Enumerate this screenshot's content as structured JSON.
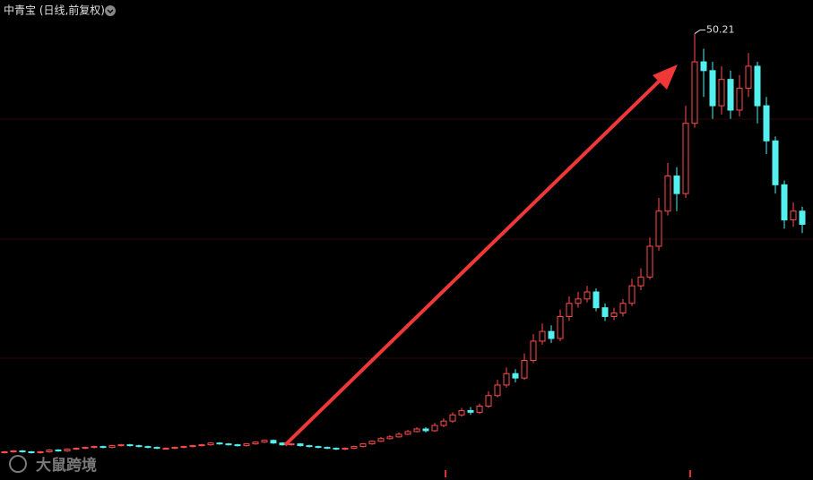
{
  "chart_data": {
    "type": "candlestick",
    "title": "中青宝 (日线,前复权)",
    "watermark": "大鼠跨境",
    "annotation": "50.21",
    "up_color": "#ff4b4b",
    "down_color": "#54f0f0",
    "ylim": [
      0,
      52
    ],
    "open": [
      2.5,
      2.6,
      2.7,
      2.6,
      2.5,
      2.6,
      2.8,
      2.7,
      2.9,
      3.0,
      3.1,
      3.2,
      3.1,
      3.3,
      3.4,
      3.3,
      3.2,
      3.1,
      3.0,
      3.0,
      3.1,
      3.2,
      3.3,
      3.4,
      3.6,
      3.5,
      3.4,
      3.3,
      3.5,
      3.7,
      3.9,
      3.6,
      3.4,
      3.5,
      3.3,
      3.2,
      3.1,
      3.0,
      2.9,
      3.0,
      3.2,
      3.5,
      3.8,
      4.1,
      4.3,
      4.6,
      4.9,
      5.2,
      5.0,
      5.6,
      6.1,
      6.8,
      7.3,
      7.1,
      7.8,
      9.0,
      10.2,
      11.5,
      11.0,
      13.0,
      15.2,
      16.3,
      15.5,
      18.0,
      19.5,
      20.0,
      20.8,
      19.0,
      18.0,
      18.4,
      19.5,
      21.5,
      22.5,
      26.0,
      30.0,
      34.0,
      32.0,
      40.0,
      47.0,
      46.0,
      42.0,
      45.0,
      41.5,
      44.0,
      46.5,
      42.0,
      38.0,
      33.0,
      29.0,
      30.0
    ],
    "close": [
      2.6,
      2.7,
      2.6,
      2.5,
      2.6,
      2.8,
      2.7,
      2.9,
      3.0,
      3.1,
      3.2,
      3.1,
      3.3,
      3.4,
      3.3,
      3.2,
      3.1,
      3.0,
      3.0,
      3.1,
      3.2,
      3.3,
      3.4,
      3.6,
      3.5,
      3.4,
      3.3,
      3.5,
      3.7,
      3.9,
      3.6,
      3.4,
      3.5,
      3.3,
      3.2,
      3.1,
      3.0,
      2.9,
      3.0,
      3.2,
      3.5,
      3.8,
      4.1,
      4.3,
      4.6,
      4.9,
      5.2,
      5.0,
      5.6,
      6.1,
      6.8,
      7.3,
      7.1,
      7.8,
      9.0,
      10.2,
      11.5,
      11.0,
      13.0,
      15.2,
      16.3,
      15.5,
      18.0,
      19.5,
      20.0,
      20.8,
      19.0,
      18.0,
      18.4,
      19.5,
      21.5,
      22.5,
      26.0,
      30.0,
      34.0,
      32.0,
      40.0,
      47.0,
      46.0,
      42.0,
      45.0,
      41.5,
      44.0,
      46.5,
      42.0,
      38.0,
      33.0,
      29.0,
      30.0,
      28.5
    ],
    "high": [
      2.7,
      2.8,
      2.8,
      2.7,
      2.7,
      2.9,
      2.9,
      3.0,
      3.1,
      3.2,
      3.3,
      3.3,
      3.4,
      3.5,
      3.5,
      3.4,
      3.3,
      3.2,
      3.1,
      3.2,
      3.3,
      3.4,
      3.5,
      3.7,
      3.7,
      3.6,
      3.5,
      3.6,
      3.8,
      4.0,
      4.0,
      3.7,
      3.6,
      3.6,
      3.4,
      3.3,
      3.2,
      3.1,
      3.1,
      3.3,
      3.6,
      3.9,
      4.3,
      4.5,
      4.8,
      5.1,
      5.4,
      5.4,
      5.9,
      6.4,
      7.1,
      7.6,
      7.7,
      8.1,
      9.5,
      10.8,
      12.2,
      12.0,
      13.8,
      16.0,
      17.2,
      17.0,
      18.8,
      20.3,
      20.8,
      21.5,
      21.2,
      19.5,
      19.0,
      20.0,
      22.3,
      23.5,
      27.0,
      31.5,
      35.5,
      35.0,
      42.0,
      50.21,
      48.5,
      47.0,
      46.5,
      46.0,
      45.5,
      48.0,
      47.0,
      43.0,
      38.5,
      33.5,
      31.0,
      30.5
    ],
    "low": [
      2.4,
      2.5,
      2.5,
      2.4,
      2.4,
      2.5,
      2.6,
      2.6,
      2.8,
      2.9,
      3.0,
      3.0,
      3.0,
      3.2,
      3.2,
      3.1,
      3.0,
      2.9,
      2.9,
      2.9,
      3.0,
      3.1,
      3.2,
      3.3,
      3.4,
      3.3,
      3.2,
      3.2,
      3.4,
      3.6,
      3.5,
      3.3,
      3.3,
      3.2,
      3.1,
      3.0,
      2.9,
      2.8,
      2.8,
      2.9,
      3.1,
      3.4,
      3.7,
      4.0,
      4.2,
      4.5,
      4.8,
      4.8,
      4.9,
      5.4,
      5.9,
      6.6,
      6.8,
      6.9,
      7.6,
      8.8,
      9.9,
      10.5,
      10.8,
      12.7,
      14.8,
      15.0,
      15.2,
      17.5,
      19.0,
      19.6,
      18.6,
      17.5,
      17.6,
      18.0,
      19.2,
      21.0,
      22.2,
      25.5,
      29.5,
      30.0,
      31.5,
      39.5,
      43.0,
      40.5,
      41.0,
      40.5,
      40.8,
      43.0,
      40.0,
      36.5,
      32.0,
      28.0,
      28.2,
      27.5
    ]
  }
}
